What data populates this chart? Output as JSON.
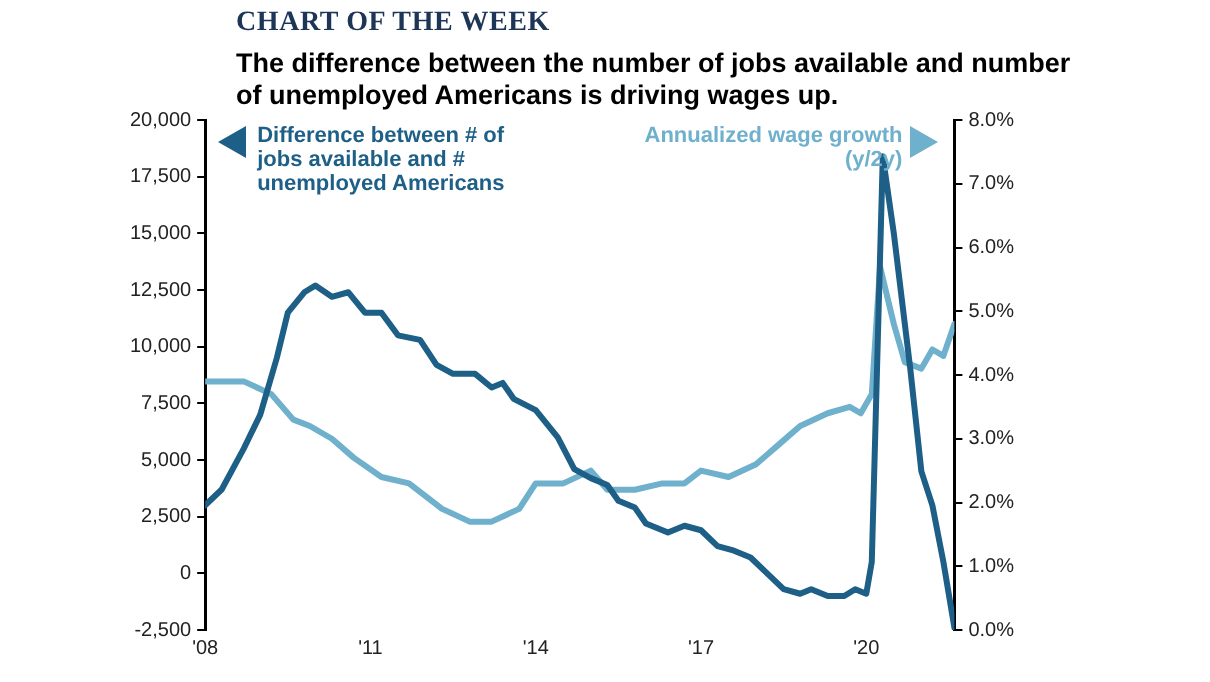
{
  "chart_data": {
    "type": "line",
    "title": "CHART OF THE WEEK",
    "subtitle": "The difference between the number of jobs available and number of unemployed Americans is driving wages up.",
    "xlim": [
      2008,
      2021.6
    ],
    "xticks": [
      {
        "value": 2008,
        "label": "'08"
      },
      {
        "value": 2011,
        "label": "'11"
      },
      {
        "value": 2014,
        "label": "'14"
      },
      {
        "value": 2017,
        "label": "'17"
      },
      {
        "value": 2020,
        "label": "'20"
      }
    ],
    "ylim": [
      -2500,
      20000
    ],
    "yticks": [
      {
        "value": -2500,
        "label": "-2,500"
      },
      0,
      {
        "value": 2500,
        "label": "2,500"
      },
      {
        "value": 5000,
        "label": "5,000"
      },
      {
        "value": 7500,
        "label": "7,500"
      },
      {
        "value": 10000,
        "label": "10,000"
      },
      {
        "value": 12500,
        "label": "12,500"
      },
      {
        "value": 15000,
        "label": "15,000"
      },
      {
        "value": 17500,
        "label": "17,500"
      },
      {
        "value": 20000,
        "label": "20,000"
      }
    ],
    "y2lim": [
      0,
      8
    ],
    "y2ticks": [
      {
        "value": 0,
        "label": "0.0%"
      },
      {
        "value": 1,
        "label": "1.0%"
      },
      {
        "value": 2,
        "label": "2.0%"
      },
      {
        "value": 3,
        "label": "3.0%"
      },
      {
        "value": 4,
        "label": "4.0%"
      },
      {
        "value": 5,
        "label": "5.0%"
      },
      {
        "value": 6,
        "label": "6.0%"
      },
      {
        "value": 7,
        "label": "7.0%"
      },
      {
        "value": 8,
        "label": "8.0%"
      }
    ],
    "grid": false,
    "legend": "top",
    "marker": "none",
    "line_style": "solid",
    "series": [
      {
        "name": "Difference between # of jobs available and # unemployed Americans",
        "color": "#1d5f86",
        "x": [
          2008.0,
          2008.3,
          2008.7,
          2009.0,
          2009.3,
          2009.5,
          2009.8,
          2010.0,
          2010.3,
          2010.6,
          2010.9,
          2011.2,
          2011.5,
          2011.9,
          2012.2,
          2012.5,
          2012.9,
          2013.2,
          2013.4,
          2013.6,
          2014.0,
          2014.4,
          2014.7,
          2015.0,
          2015.3,
          2015.5,
          2015.8,
          2016.0,
          2016.4,
          2016.7,
          2017.0,
          2017.3,
          2017.6,
          2017.9,
          2018.2,
          2018.5,
          2018.8,
          2019.0,
          2019.3,
          2019.6,
          2019.8,
          2020.0,
          2020.1,
          2020.3,
          2020.5,
          2020.8,
          2021.0,
          2021.2,
          2021.4,
          2021.6
        ],
        "values": [
          3000,
          3700,
          5500,
          7000,
          9500,
          11500,
          12400,
          12700,
          12200,
          12400,
          11500,
          11500,
          10500,
          10300,
          9200,
          8800,
          8800,
          8200,
          8400,
          7700,
          7200,
          6000,
          4600,
          4200,
          3900,
          3200,
          2900,
          2200,
          1800,
          2100,
          1900,
          1200,
          1000,
          700,
          0,
          -700,
          -900,
          -700,
          -1000,
          -1000,
          -700,
          -900,
          500,
          18400,
          15000,
          9000,
          4500,
          3000,
          500,
          -2400
        ]
      },
      {
        "name": "Annualized wage growth (y/2y)",
        "color": "#6fb0cc",
        "axis": "y2",
        "x": [
          2008.0,
          2008.7,
          2009.2,
          2009.6,
          2009.9,
          2010.3,
          2010.7,
          2011.2,
          2011.7,
          2012.3,
          2012.8,
          2013.2,
          2013.7,
          2014.0,
          2014.5,
          2015.0,
          2015.3,
          2015.8,
          2016.3,
          2016.7,
          2017.0,
          2017.5,
          2018.0,
          2018.4,
          2018.8,
          2019.3,
          2019.7,
          2019.9,
          2020.1,
          2020.25,
          2020.5,
          2020.7,
          2021.0,
          2021.2,
          2021.4,
          2021.6
        ],
        "values": [
          3.9,
          3.9,
          3.7,
          3.3,
          3.2,
          3.0,
          2.7,
          2.4,
          2.3,
          1.9,
          1.7,
          1.7,
          1.9,
          2.3,
          2.3,
          2.5,
          2.2,
          2.2,
          2.3,
          2.3,
          2.5,
          2.4,
          2.6,
          2.9,
          3.2,
          3.4,
          3.5,
          3.4,
          3.7,
          5.7,
          4.8,
          4.2,
          4.1,
          4.4,
          4.3,
          4.8
        ]
      }
    ]
  }
}
